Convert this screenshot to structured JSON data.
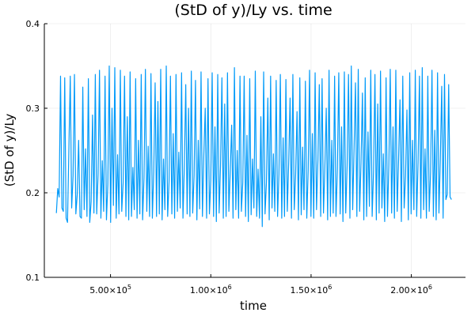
{
  "chart_data": {
    "type": "line",
    "title": "(StD of y)/Ly vs. time",
    "xlabel": "time",
    "ylabel": "(StD of y)/Ly",
    "xlim": [
      170000,
      2270000
    ],
    "ylim": [
      0.1,
      0.4
    ],
    "x_ticks": [
      {
        "value": 500000,
        "mantissa": "5.00×10",
        "exp": "5"
      },
      {
        "value": 1000000,
        "mantissa": "1.00×10",
        "exp": "6"
      },
      {
        "value": 1500000,
        "mantissa": "1.50×10",
        "exp": "6"
      },
      {
        "value": 2000000,
        "mantissa": "2.00×10",
        "exp": "6"
      }
    ],
    "y_ticks": [
      {
        "value": 0.1,
        "label": "0.1"
      },
      {
        "value": 0.2,
        "label": "0.2"
      },
      {
        "value": 0.3,
        "label": "0.3"
      },
      {
        "value": 0.4,
        "label": "0.4"
      }
    ],
    "grid": true,
    "legend": "none",
    "series_color": "#009af9",
    "series": [
      {
        "x_start": 230000,
        "x_end": 2200000,
        "values": [
          0.176,
          0.205,
          0.195,
          0.338,
          0.182,
          0.178,
          0.336,
          0.17,
          0.165,
          0.252,
          0.338,
          0.182,
          0.22,
          0.34,
          0.175,
          0.198,
          0.262,
          0.172,
          0.17,
          0.325,
          0.18,
          0.252,
          0.172,
          0.335,
          0.165,
          0.19,
          0.292,
          0.176,
          0.34,
          0.175,
          0.222,
          0.345,
          0.17,
          0.238,
          0.178,
          0.338,
          0.168,
          0.21,
          0.35,
          0.165,
          0.3,
          0.185,
          0.348,
          0.17,
          0.245,
          0.175,
          0.345,
          0.178,
          0.212,
          0.338,
          0.172,
          0.29,
          0.168,
          0.343,
          0.172,
          0.23,
          0.18,
          0.335,
          0.17,
          0.262,
          0.175,
          0.34,
          0.168,
          0.218,
          0.346,
          0.178,
          0.255,
          0.172,
          0.341,
          0.17,
          0.225,
          0.33,
          0.172,
          0.308,
          0.175,
          0.346,
          0.168,
          0.24,
          0.18,
          0.35,
          0.172,
          0.213,
          0.338,
          0.175,
          0.27,
          0.17,
          0.34,
          0.178,
          0.248,
          0.182,
          0.342,
          0.17,
          0.232,
          0.328,
          0.175,
          0.3,
          0.172,
          0.344,
          0.176,
          0.22,
          0.333,
          0.168,
          0.262,
          0.181,
          0.343,
          0.172,
          0.245,
          0.3,
          0.17,
          0.335,
          0.175,
          0.215,
          0.342,
          0.172,
          0.278,
          0.166,
          0.34,
          0.176,
          0.232,
          0.336,
          0.17,
          0.305,
          0.172,
          0.342,
          0.178,
          0.226,
          0.28,
          0.17,
          0.348,
          0.18,
          0.25,
          0.17,
          0.338,
          0.178,
          0.212,
          0.338,
          0.172,
          0.268,
          0.166,
          0.335,
          0.174,
          0.24,
          0.182,
          0.344,
          0.172,
          0.228,
          0.17,
          0.29,
          0.16,
          0.343,
          0.175,
          0.212,
          0.312,
          0.168,
          0.338,
          0.182,
          0.246,
          0.178,
          0.333,
          0.172,
          0.222,
          0.34,
          0.17,
          0.265,
          0.172,
          0.334,
          0.178,
          0.236,
          0.312,
          0.17,
          0.34,
          0.18,
          0.222,
          0.296,
          0.168,
          0.336,
          0.174,
          0.254,
          0.18,
          0.332,
          0.17,
          0.226,
          0.345,
          0.172,
          0.27,
          0.17,
          0.342,
          0.18,
          0.238,
          0.328,
          0.172,
          0.335,
          0.176,
          0.23,
          0.3,
          0.168,
          0.345,
          0.172,
          0.262,
          0.176,
          0.338,
          0.172,
          0.228,
          0.342,
          0.175,
          0.278,
          0.166,
          0.343,
          0.176,
          0.232,
          0.34,
          0.17,
          0.35,
          0.18,
          0.252,
          0.33,
          0.172,
          0.346,
          0.178,
          0.236,
          0.318,
          0.168,
          0.336,
          0.172,
          0.272,
          0.184,
          0.345,
          0.172,
          0.226,
          0.34,
          0.168,
          0.305,
          0.176,
          0.344,
          0.182,
          0.246,
          0.166,
          0.336,
          0.172,
          0.232,
          0.346,
          0.176,
          0.278,
          0.17,
          0.345,
          0.178,
          0.24,
          0.31,
          0.166,
          0.338,
          0.182,
          0.22,
          0.298,
          0.168,
          0.342,
          0.175,
          0.262,
          0.18,
          0.345,
          0.172,
          0.236,
          0.338,
          0.17,
          0.348,
          0.18,
          0.252,
          0.17,
          0.338,
          0.178,
          0.224,
          0.345,
          0.172,
          0.274,
          0.168,
          0.342,
          0.176,
          0.24,
          0.326,
          0.17,
          0.34,
          0.192,
          0.198,
          0.328,
          0.195,
          0.192
        ]
      }
    ]
  }
}
